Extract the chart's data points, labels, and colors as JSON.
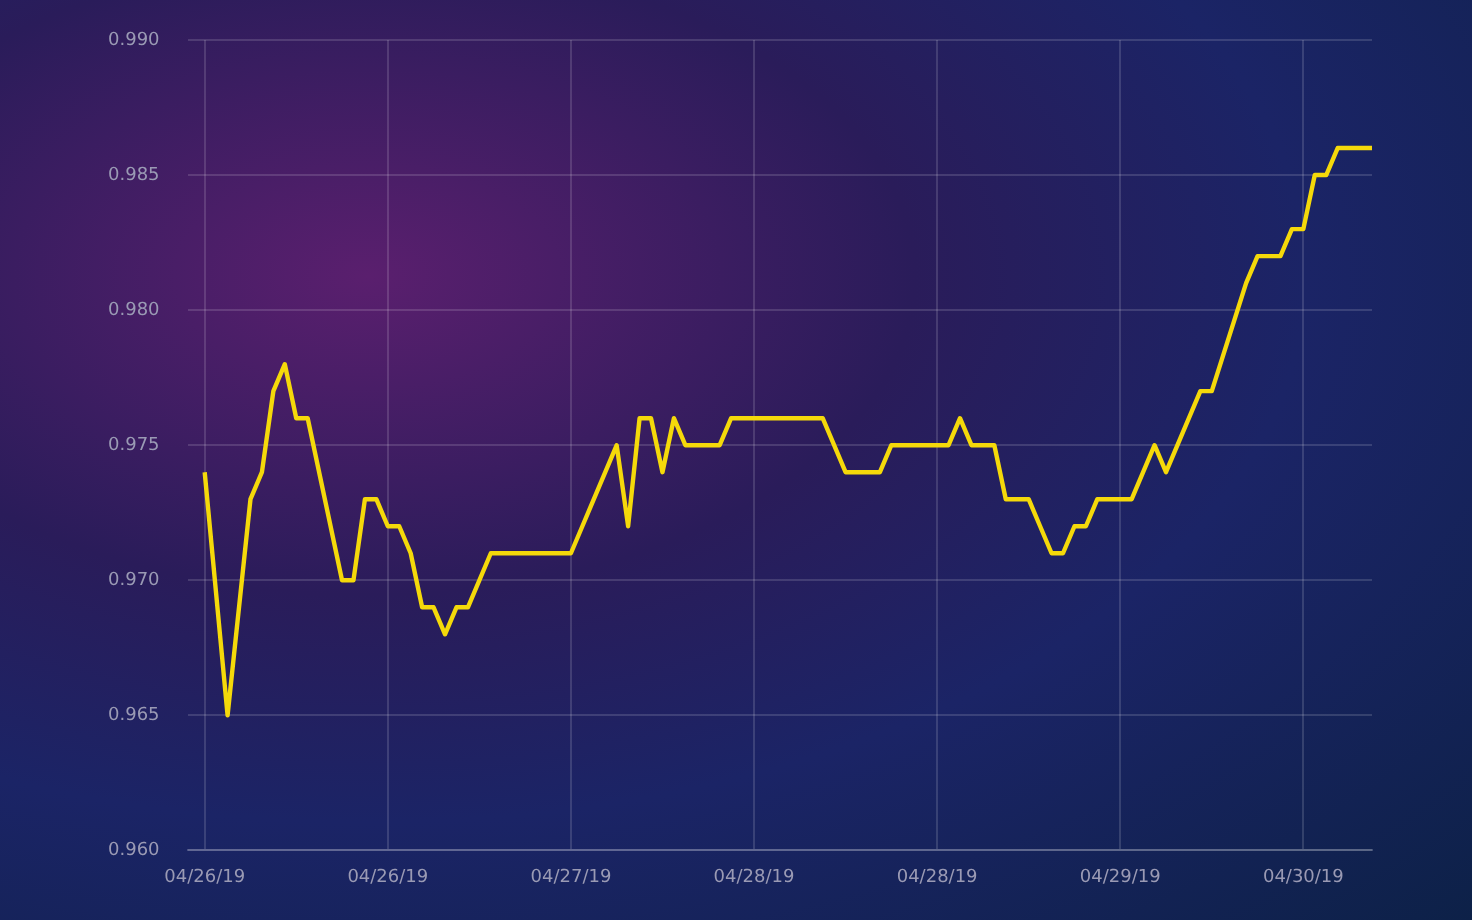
{
  "chart_data": {
    "type": "line",
    "x": [
      "--04-26T00:00",
      "--04-26T02:00",
      "--04-26T04:00",
      "--04-26T05:00",
      "--04-26T06:00",
      "--04-26T07:00",
      "--04-26T08:00",
      "--04-26T09:00",
      "--04-26T12:00",
      "--04-26T13:00",
      "--04-26T14:00",
      "--04-26T15:00",
      "--04-26T16:00",
      "--04-26T17:00",
      "--04-26T18:00",
      "--04-26T19:00",
      "--04-26T20:00",
      "--04-26T21:00",
      "--04-26T22:00",
      "--04-26T23:00",
      "--04-27T01:00",
      "--04-27T08:00",
      "--04-27T09:00",
      "--04-27T12:00",
      "--04-27T13:00",
      "--04-27T14:00",
      "--04-27T15:00",
      "--04-27T16:00",
      "--04-27T17:00",
      "--04-27T18:00",
      "--04-27T21:00",
      "--04-27T22:00",
      "--04-28T06:00",
      "--04-28T07:00",
      "--04-28T08:00",
      "--04-28T11:00",
      "--04-28T12:00",
      "--04-28T17:00",
      "--04-28T18:00",
      "--04-28T19:00",
      "--04-28T21:00",
      "--04-28T22:00",
      "--04-29T00:00",
      "--04-29T01:00",
      "--04-29T02:00",
      "--04-29T03:00",
      "--04-29T04:00",
      "--04-29T05:00",
      "--04-29T06:00",
      "--04-29T09:00",
      "--04-29T11:00",
      "--04-29T12:00",
      "--04-29T15:00",
      "--04-29T16:00",
      "--04-29T19:00",
      "--04-29T20:00",
      "--04-29T22:00",
      "--04-29T23:00",
      "--04-30T00:00",
      "--04-30T01:00",
      "--04-30T02:00",
      "--04-30T03:00",
      "--04-30T06:00"
    ],
    "series": [
      {
        "color": "#f5d90a",
        "values": [
          0.974,
          0.965,
          0.973,
          0.974,
          0.977,
          0.978,
          0.976,
          0.976,
          0.97,
          0.97,
          0.973,
          0.973,
          0.972,
          0.972,
          0.971,
          0.969,
          0.969,
          0.968,
          0.969,
          0.969,
          0.971,
          0.971,
          0.972,
          0.975,
          0.972,
          0.976,
          0.976,
          0.974,
          0.976,
          0.975,
          0.975,
          0.976,
          0.976,
          0.975,
          0.974,
          0.974,
          0.975,
          0.975,
          0.976,
          0.975,
          0.975,
          0.973,
          0.973,
          0.972,
          0.971,
          0.971,
          0.972,
          0.972,
          0.973,
          0.973,
          0.975,
          0.974,
          0.977,
          0.977,
          0.981,
          0.982,
          0.982,
          0.983,
          0.983,
          0.985,
          0.985,
          0.986,
          0.986
        ]
      }
    ],
    "xlim": [
      "--04-25T22:30",
      "--04-30T06:00"
    ],
    "xticks": [
      {
        "value": "--04-26T00:00",
        "label": "04/26/19"
      },
      {
        "value": "--04-26T16:00",
        "label": "04/26/19"
      },
      {
        "value": "--04-27T08:00",
        "label": "04/27/19"
      },
      {
        "value": "--04-28T00:00",
        "label": "04/28/19"
      },
      {
        "value": "--04-28T16:00",
        "label": "04/28/19"
      },
      {
        "value": "--04-29T08:00",
        "label": "04/29/19"
      },
      {
        "value": "--04-30T00:00",
        "label": "04/30/19"
      }
    ],
    "ylim": [
      0.96,
      0.99
    ],
    "yticks": [
      {
        "value": 0.96,
        "label": "0.960"
      },
      {
        "value": 0.965,
        "label": "0.965"
      },
      {
        "value": 0.97,
        "label": "0.970"
      },
      {
        "value": 0.975,
        "label": "0.975"
      },
      {
        "value": 0.98,
        "label": "0.980"
      },
      {
        "value": 0.985,
        "label": "0.985"
      },
      {
        "value": 0.99,
        "label": "0.990"
      }
    ],
    "grid": true,
    "legend": false,
    "marker": "none",
    "line_style": "solid"
  }
}
